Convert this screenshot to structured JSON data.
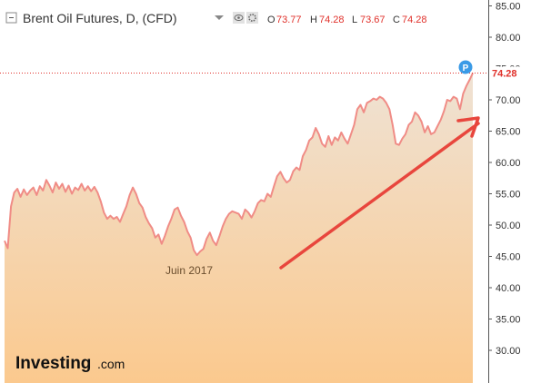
{
  "header": {
    "title": "Brent Oil Futures, D, (CFD)",
    "ohlc": [
      {
        "label": "O",
        "value": "73.77"
      },
      {
        "label": "H",
        "value": "74.28"
      },
      {
        "label": "L",
        "value": "73.67"
      },
      {
        "label": "C",
        "value": "74.28"
      }
    ]
  },
  "price_badge": "74.28",
  "marker_label": "P",
  "annotation": "Juin 2017",
  "branding": {
    "logo": "Investing",
    "suffix": ".com"
  },
  "colors": {
    "line": "#f08c86",
    "area_top": "#efe2d4",
    "area_bottom": "#fbc98e",
    "arrow": "#e8463d",
    "accent": "#e0302a",
    "marker": "#3a9ae6"
  },
  "chart_data": {
    "type": "area",
    "title": "Brent Oil Futures, D, (CFD)",
    "ylim": [
      25,
      85
    ],
    "yticks": [
      30,
      35,
      40,
      45,
      50,
      55,
      60,
      65,
      70,
      75,
      80,
      85
    ],
    "ytick_labels": [
      "30.00",
      "35.00",
      "40.00",
      "45.00",
      "50.00",
      "55.00",
      "60.00",
      "65.00",
      "70.00",
      "75.00",
      "80.00",
      "85.00"
    ],
    "last_value": 74.28,
    "grid": false,
    "series": [
      {
        "values": [
          47.5,
          46.3,
          53.0,
          55.2,
          55.8,
          54.5,
          55.7,
          54.8,
          55.5,
          56.0,
          54.8,
          56.2,
          55.5,
          57.2,
          56.3,
          55.2,
          56.8,
          55.8,
          56.6,
          55.3,
          56.3,
          55.0,
          56.0,
          55.6,
          56.6,
          55.5,
          56.2,
          55.4,
          56.1,
          55.2,
          53.8,
          52.0,
          51.0,
          51.5,
          51.0,
          51.3,
          50.5,
          51.8,
          53.0,
          54.8,
          56.0,
          55.0,
          53.5,
          52.8,
          51.3,
          50.3,
          49.5,
          48.0,
          48.5,
          47.0,
          48.3,
          49.8,
          51.0,
          52.5,
          52.8,
          51.5,
          50.5,
          49.0,
          48.0,
          46.0,
          45.2,
          45.8,
          46.2,
          47.8,
          48.8,
          47.5,
          46.8,
          48.2,
          49.8,
          51.0,
          51.8,
          52.2,
          52.0,
          51.8,
          51.0,
          52.5,
          52.0,
          51.2,
          52.2,
          53.5,
          54.0,
          53.8,
          55.0,
          54.5,
          56.2,
          57.8,
          58.5,
          57.5,
          56.8,
          57.2,
          58.6,
          59.2,
          58.8,
          61.0,
          62.0,
          63.5,
          64.0,
          65.5,
          64.5,
          63.0,
          62.5,
          64.2,
          62.8,
          64.0,
          63.5,
          64.8,
          63.8,
          63.0,
          64.5,
          66.0,
          68.5,
          69.2,
          68.0,
          69.5,
          69.8,
          70.2,
          70.0,
          70.5,
          70.2,
          69.5,
          68.5,
          66.0,
          63.0,
          62.8,
          63.8,
          64.5,
          66.0,
          66.5,
          68.0,
          67.5,
          66.5,
          64.8,
          65.8,
          64.5,
          64.8,
          65.8,
          66.8,
          68.2,
          70.0,
          69.8,
          70.5,
          70.2,
          68.5,
          71.0,
          72.2,
          73.2,
          74.28
        ]
      }
    ]
  }
}
